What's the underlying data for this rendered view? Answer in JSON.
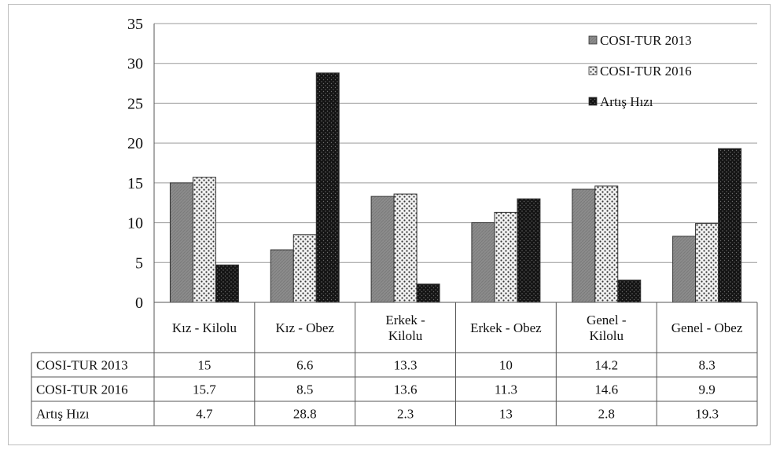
{
  "chart_data": {
    "type": "bar",
    "categories": [
      [
        "Kız - Kilolu"
      ],
      [
        "Kız - Obez"
      ],
      [
        "Erkek -",
        "Kilolu"
      ],
      [
        "Erkek - Obez"
      ],
      [
        "Genel -",
        "Kilolu"
      ],
      [
        "Genel - Obez"
      ]
    ],
    "series": [
      {
        "name": "COSI-TUR 2013",
        "values": [
          15,
          6.6,
          13.3,
          10,
          14.2,
          8.3
        ],
        "labels": [
          "15",
          "6.6",
          "13.3",
          "10",
          "14.2",
          "8.3"
        ],
        "color": "#8a8a8a",
        "pattern": "solid-gray"
      },
      {
        "name": "COSI-TUR 2016",
        "values": [
          15.7,
          8.5,
          13.6,
          11.3,
          14.6,
          9.9
        ],
        "labels": [
          "15.7",
          "8.5",
          "13.6",
          "11.3",
          "14.6",
          "9.9"
        ],
        "color": "#e6e6e6",
        "pattern": "dotted"
      },
      {
        "name": "Artış Hızı",
        "values": [
          4.7,
          28.8,
          2.3,
          13,
          2.8,
          19.3
        ],
        "labels": [
          "4.7",
          "28.8",
          "2.3",
          "13",
          "2.8",
          "19.3"
        ],
        "color": "#1a1a1a",
        "pattern": "dark-dotted"
      }
    ],
    "yticks": [
      "0",
      "5",
      "10",
      "15",
      "20",
      "25",
      "30",
      "35"
    ],
    "ylim": [
      0,
      35
    ],
    "grid": true,
    "legend_position": "top-right",
    "data_table": true
  }
}
